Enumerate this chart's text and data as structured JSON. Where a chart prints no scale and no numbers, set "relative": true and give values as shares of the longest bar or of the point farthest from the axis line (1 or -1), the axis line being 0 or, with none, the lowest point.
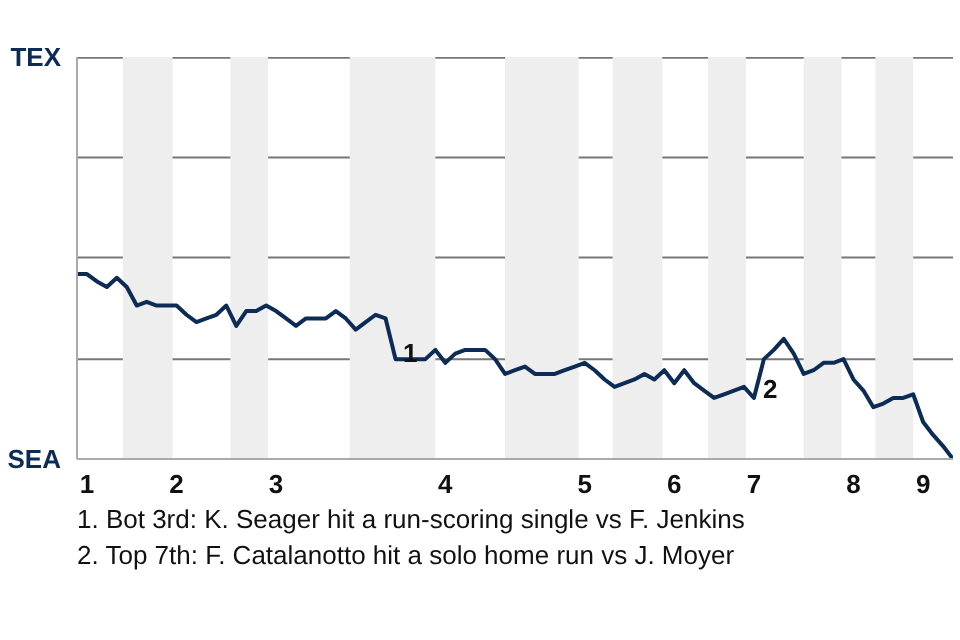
{
  "chart_data": {
    "type": "line",
    "relative": true,
    "categories": [
      null,
      "1",
      null,
      null,
      null,
      null,
      null,
      null,
      null,
      null,
      "2",
      null,
      null,
      null,
      null,
      null,
      null,
      null,
      null,
      null,
      "3",
      null,
      null,
      null,
      null,
      null,
      null,
      null,
      null,
      null,
      null,
      null,
      null,
      null,
      null,
      null,
      null,
      "4",
      null,
      null,
      null,
      null,
      null,
      null,
      null,
      null,
      null,
      null,
      null,
      null,
      null,
      "5",
      null,
      null,
      null,
      null,
      null,
      null,
      null,
      null,
      "6",
      null,
      null,
      null,
      null,
      null,
      null,
      null,
      "7",
      null,
      null,
      null,
      null,
      null,
      null,
      null,
      null,
      null,
      "8",
      null,
      null,
      null,
      null,
      null,
      null,
      "9",
      null,
      null,
      null
    ],
    "series": [
      {
        "color": "#0c2c56",
        "values": [
          1,
          1,
          0.96,
          0.93,
          0.98,
          0.93,
          0.83,
          0.85,
          0.83,
          0.83,
          0.83,
          0.78,
          0.74,
          0.76,
          0.78,
          0.83,
          0.72,
          0.8,
          0.8,
          0.83,
          0.8,
          0.76,
          0.72,
          0.76,
          0.76,
          0.76,
          0.8,
          0.76,
          0.7,
          0.74,
          0.78,
          0.76,
          0.54,
          0.54,
          0.54,
          0.54,
          0.59,
          0.52,
          0.57,
          0.59,
          0.59,
          0.59,
          0.54,
          0.46,
          0.48,
          0.5,
          0.46,
          0.46,
          0.46,
          0.48,
          0.5,
          0.52,
          0.48,
          0.43,
          0.39,
          0.41,
          0.43,
          0.46,
          0.43,
          0.48,
          0.41,
          0.48,
          0.41,
          0.37,
          0.33,
          0.35,
          0.37,
          0.39,
          0.33,
          0.54,
          0.59,
          0.65,
          0.57,
          0.46,
          0.48,
          0.52,
          0.52,
          0.54,
          0.43,
          0.37,
          0.28,
          0.3,
          0.33,
          0.33,
          0.35,
          0.2,
          0.13,
          0.07,
          0
        ]
      }
    ],
    "line_style": "solid",
    "ref_lines": [
      {
        "axis": "y",
        "value": 0.54,
        "color": "#777777"
      },
      {
        "axis": "y",
        "value": 1.09,
        "color": "#777777"
      },
      {
        "axis": "y",
        "value": 1.63,
        "color": "#777777"
      },
      {
        "axis": "y",
        "value": 2.17,
        "color": "#777777"
      }
    ],
    "annotations": [
      "TEX",
      "SEA",
      "1",
      "2",
      "1. Bot 3rd: K. Seager hit a run-scoring single vs F. Jenkins",
      "2. Top 7th: F. Catalanotto hit a solo home run vs J. Moyer"
    ]
  }
}
